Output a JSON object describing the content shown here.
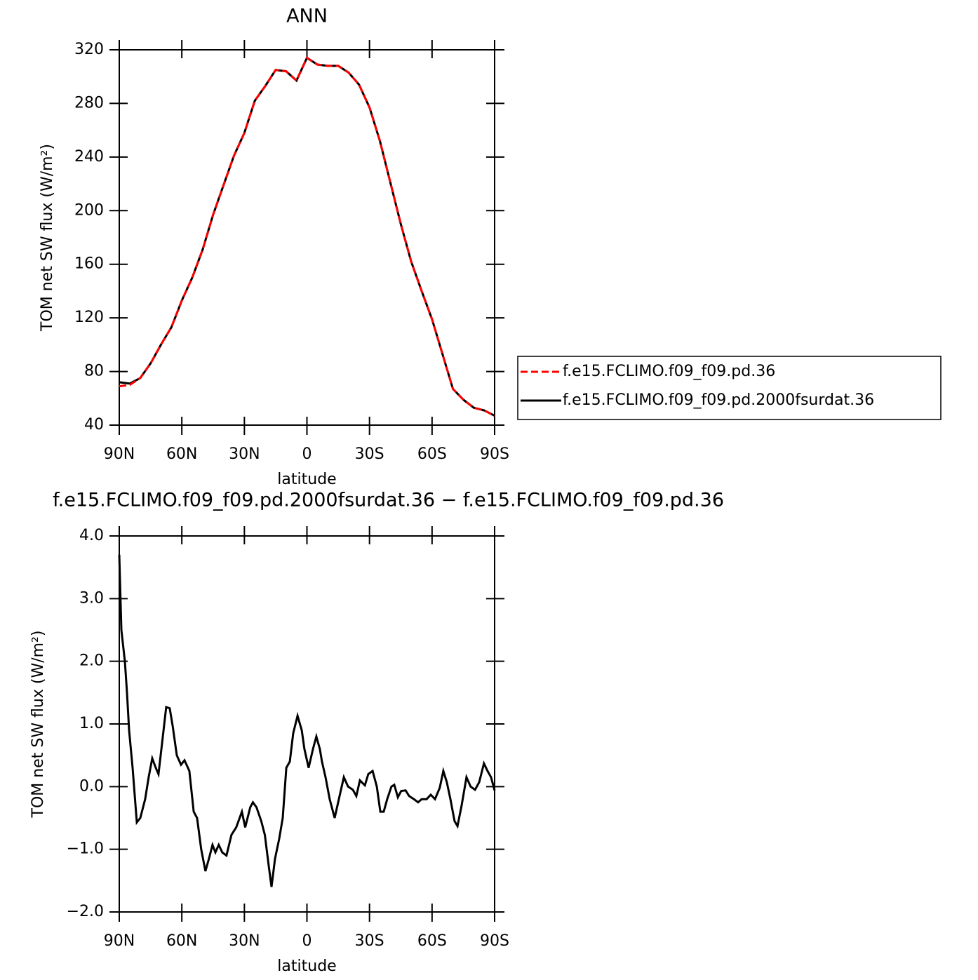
{
  "chart_data": [
    {
      "type": "line",
      "title": "ANN",
      "xlabel": "latitude",
      "ylabel": "TOM net SW flux (W/m²)",
      "x": [
        90,
        85,
        80,
        75,
        70,
        65,
        60,
        55,
        50,
        45,
        40,
        35,
        30,
        25,
        20,
        15,
        10,
        5,
        0,
        -5,
        -10,
        -15,
        -20,
        -25,
        -30,
        -35,
        -40,
        -45,
        -50,
        -55,
        -60,
        -65,
        -70,
        -75,
        -80,
        -85,
        -90
      ],
      "series": [
        {
          "name": "f.e15.FCLIMO.f09_f09.pd.36",
          "color": "#ff0000",
          "linestyle": "dashed",
          "values": [
            69,
            70,
            75,
            86,
            100,
            113,
            133,
            150,
            171,
            197,
            219,
            241,
            258,
            282,
            293,
            305,
            304,
            297,
            314,
            309,
            308,
            308,
            303,
            294,
            277,
            252,
            221,
            190,
            162,
            140,
            119,
            93,
            67,
            59,
            53,
            51,
            47
          ]
        },
        {
          "name": "f.e15.FCLIMO.f09_f09.pd.2000fsurdat.36",
          "color": "#000000",
          "linestyle": "solid",
          "values": [
            72,
            71,
            75,
            86,
            100,
            113,
            133,
            150,
            171,
            197,
            219,
            241,
            258,
            282,
            293,
            305,
            304,
            297,
            314,
            309,
            308,
            308,
            303,
            294,
            277,
            252,
            221,
            190,
            162,
            140,
            119,
            93,
            67,
            59,
            53,
            51,
            47
          ]
        }
      ],
      "xlim": [
        90,
        -90
      ],
      "xticks": [
        {
          "value": 90,
          "label": "90N"
        },
        {
          "value": 60,
          "label": "60N"
        },
        {
          "value": 30,
          "label": "30N"
        },
        0,
        {
          "value": -30,
          "label": "30S"
        },
        {
          "value": -60,
          "label": "60S"
        },
        {
          "value": -90,
          "label": "90S"
        }
      ],
      "ylim": [
        40,
        320
      ],
      "yticks": [
        40,
        80,
        120,
        160,
        200,
        240,
        280,
        320
      ],
      "grid": false,
      "legend": "right"
    },
    {
      "type": "line",
      "title": "f.e15.FCLIMO.f09_f09.pd.2000fsurdat.36 − f.e15.FCLIMO.f09_f09.pd.36",
      "xlabel": "latitude",
      "ylabel": "TOM net SW flux (W/m²)",
      "x": [
        90,
        89,
        87.3,
        86.3,
        85.3,
        83.6,
        81.6,
        79.9,
        77.6,
        75.9,
        74.2,
        72.5,
        71.2,
        69.1,
        67.5,
        65.8,
        64.4,
        62.4,
        60.4,
        58.7,
        56.4,
        54.3,
        52.7,
        50.7,
        48.7,
        47.0,
        45.3,
        43.9,
        42.3,
        40.6,
        38.6,
        36.2,
        33.9,
        31.2,
        29.6,
        27.2,
        25.9,
        24.2,
        21.9,
        20.2,
        18.3,
        17.0,
        15.3,
        13.3,
        11.6,
        9.9,
        8.2,
        6.6,
        4.5,
        2.5,
        1.2,
        -0.8,
        -2.9,
        -4.5,
        -6.2,
        -7.2,
        -8.9,
        -10.9,
        -13.3,
        -15.3,
        -17.7,
        -19.7,
        -22.0,
        -23.7,
        -25.4,
        -27.8,
        -29.4,
        -31.5,
        -33.5,
        -35.2,
        -36.8,
        -38.5,
        -40.5,
        -41.9,
        -43.6,
        -45.2,
        -47.3,
        -49.0,
        -51.3,
        -53.3,
        -55.0,
        -57.4,
        -59.4,
        -61.4,
        -63.7,
        -65.4,
        -67.1,
        -68.8,
        -70.8,
        -72.2,
        -74.2,
        -76.5,
        -78.5,
        -80.6,
        -82.6,
        -84.9,
        -86.6,
        -88.3,
        -90
      ],
      "color": "#000000",
      "values": [
        3.7,
        2.5,
        2.0,
        1.5,
        0.9,
        0.3,
        -0.57,
        -0.5,
        -0.2,
        0.15,
        0.45,
        0.3,
        0.2,
        0.8,
        1.27,
        1.25,
        0.97,
        0.5,
        0.35,
        0.42,
        0.25,
        -0.4,
        -0.5,
        -1.0,
        -1.35,
        -1.15,
        -0.93,
        -1.05,
        -0.93,
        -1.05,
        -1.1,
        -0.77,
        -0.65,
        -0.4,
        -0.65,
        -0.33,
        -0.25,
        -0.33,
        -0.55,
        -0.77,
        -1.27,
        -1.6,
        -1.15,
        -0.83,
        -0.5,
        0.3,
        0.4,
        0.85,
        1.13,
        0.9,
        0.6,
        0.3,
        0.6,
        0.8,
        0.6,
        0.4,
        0.15,
        -0.2,
        -0.5,
        -0.2,
        0.15,
        0.0,
        -0.05,
        -0.15,
        0.1,
        0.02,
        0.2,
        0.25,
        0.0,
        -0.4,
        -0.4,
        -0.2,
        0.0,
        0.03,
        -0.17,
        -0.07,
        -0.06,
        -0.15,
        -0.2,
        -0.25,
        -0.2,
        -0.2,
        -0.13,
        -0.2,
        -0.02,
        0.25,
        0.07,
        -0.2,
        -0.55,
        -0.63,
        -0.3,
        0.15,
        0.0,
        -0.05,
        0.07,
        0.37,
        0.25,
        0.15,
        -0.06
      ],
      "xlim": [
        90,
        -90
      ],
      "xticks": [
        {
          "value": 90,
          "label": "90N"
        },
        {
          "value": 60,
          "label": "60N"
        },
        {
          "value": 30,
          "label": "30N"
        },
        0,
        {
          "value": -30,
          "label": "30S"
        },
        {
          "value": -60,
          "label": "60S"
        },
        {
          "value": -90,
          "label": "90S"
        }
      ],
      "ylim": [
        -2,
        4
      ],
      "yticks": [
        {
          "value": -2,
          "label": "−2.0"
        },
        {
          "value": -1,
          "label": "−1.0"
        },
        {
          "value": 0,
          "label": "0.0"
        },
        {
          "value": 1,
          "label": "1.0"
        },
        {
          "value": 2,
          "label": "2.0"
        },
        {
          "value": 3,
          "label": "3.0"
        },
        {
          "value": 4,
          "label": "4.0"
        }
      ],
      "grid": false
    }
  ]
}
